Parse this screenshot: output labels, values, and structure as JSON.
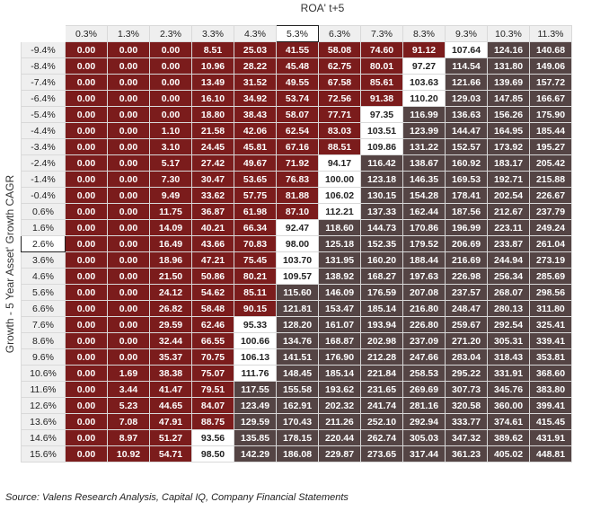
{
  "chart_data": {
    "type": "table",
    "xlabel": "ROA' t+5",
    "ylabel": "Growth - 5 Year Asset' Growth CAGR",
    "highlight_column": "5.3%",
    "highlight_row": "2.6%",
    "colors": {
      "below_threshold": "#7b1c1c",
      "threshold": "#ffffff",
      "above_threshold": "#544444"
    },
    "columns": [
      "0.3%",
      "1.3%",
      "2.3%",
      "3.3%",
      "4.3%",
      "5.3%",
      "6.3%",
      "7.3%",
      "8.3%",
      "9.3%",
      "10.3%",
      "11.3%"
    ],
    "rows": [
      "-9.4%",
      "-8.4%",
      "-7.4%",
      "-6.4%",
      "-5.4%",
      "-4.4%",
      "-3.4%",
      "-2.4%",
      "-1.4%",
      "-0.4%",
      "0.6%",
      "1.6%",
      "2.6%",
      "3.6%",
      "4.6%",
      "5.6%",
      "6.6%",
      "7.6%",
      "8.6%",
      "9.6%",
      "10.6%",
      "11.6%",
      "12.6%",
      "13.6%",
      "14.6%",
      "15.6%"
    ],
    "values": [
      [
        "0.00",
        "0.00",
        "0.00",
        "8.51",
        "25.03",
        "41.55",
        "58.08",
        "74.60",
        "91.12",
        "107.64",
        "124.16",
        "140.68"
      ],
      [
        "0.00",
        "0.00",
        "0.00",
        "10.96",
        "28.22",
        "45.48",
        "62.75",
        "80.01",
        "97.27",
        "114.54",
        "131.80",
        "149.06"
      ],
      [
        "0.00",
        "0.00",
        "0.00",
        "13.49",
        "31.52",
        "49.55",
        "67.58",
        "85.61",
        "103.63",
        "121.66",
        "139.69",
        "157.72"
      ],
      [
        "0.00",
        "0.00",
        "0.00",
        "16.10",
        "34.92",
        "53.74",
        "72.56",
        "91.38",
        "110.20",
        "129.03",
        "147.85",
        "166.67"
      ],
      [
        "0.00",
        "0.00",
        "0.00",
        "18.80",
        "38.43",
        "58.07",
        "77.71",
        "97.35",
        "116.99",
        "136.63",
        "156.26",
        "175.90"
      ],
      [
        "0.00",
        "0.00",
        "1.10",
        "21.58",
        "42.06",
        "62.54",
        "83.03",
        "103.51",
        "123.99",
        "144.47",
        "164.95",
        "185.44"
      ],
      [
        "0.00",
        "0.00",
        "3.10",
        "24.45",
        "45.81",
        "67.16",
        "88.51",
        "109.86",
        "131.22",
        "152.57",
        "173.92",
        "195.27"
      ],
      [
        "0.00",
        "0.00",
        "5.17",
        "27.42",
        "49.67",
        "71.92",
        "94.17",
        "116.42",
        "138.67",
        "160.92",
        "183.17",
        "205.42"
      ],
      [
        "0.00",
        "0.00",
        "7.30",
        "30.47",
        "53.65",
        "76.83",
        "100.00",
        "123.18",
        "146.35",
        "169.53",
        "192.71",
        "215.88"
      ],
      [
        "0.00",
        "0.00",
        "9.49",
        "33.62",
        "57.75",
        "81.88",
        "106.02",
        "130.15",
        "154.28",
        "178.41",
        "202.54",
        "226.67"
      ],
      [
        "0.00",
        "0.00",
        "11.75",
        "36.87",
        "61.98",
        "87.10",
        "112.21",
        "137.33",
        "162.44",
        "187.56",
        "212.67",
        "237.79"
      ],
      [
        "0.00",
        "0.00",
        "14.09",
        "40.21",
        "66.34",
        "92.47",
        "118.60",
        "144.73",
        "170.86",
        "196.99",
        "223.11",
        "249.24"
      ],
      [
        "0.00",
        "0.00",
        "16.49",
        "43.66",
        "70.83",
        "98.00",
        "125.18",
        "152.35",
        "179.52",
        "206.69",
        "233.87",
        "261.04"
      ],
      [
        "0.00",
        "0.00",
        "18.96",
        "47.21",
        "75.45",
        "103.70",
        "131.95",
        "160.20",
        "188.44",
        "216.69",
        "244.94",
        "273.19"
      ],
      [
        "0.00",
        "0.00",
        "21.50",
        "50.86",
        "80.21",
        "109.57",
        "138.92",
        "168.27",
        "197.63",
        "226.98",
        "256.34",
        "285.69"
      ],
      [
        "0.00",
        "0.00",
        "24.12",
        "54.62",
        "85.11",
        "115.60",
        "146.09",
        "176.59",
        "207.08",
        "237.57",
        "268.07",
        "298.56"
      ],
      [
        "0.00",
        "0.00",
        "26.82",
        "58.48",
        "90.15",
        "121.81",
        "153.47",
        "185.14",
        "216.80",
        "248.47",
        "280.13",
        "311.80"
      ],
      [
        "0.00",
        "0.00",
        "29.59",
        "62.46",
        "95.33",
        "128.20",
        "161.07",
        "193.94",
        "226.80",
        "259.67",
        "292.54",
        "325.41"
      ],
      [
        "0.00",
        "0.00",
        "32.44",
        "66.55",
        "100.66",
        "134.76",
        "168.87",
        "202.98",
        "237.09",
        "271.20",
        "305.31",
        "339.41"
      ],
      [
        "0.00",
        "0.00",
        "35.37",
        "70.75",
        "106.13",
        "141.51",
        "176.90",
        "212.28",
        "247.66",
        "283.04",
        "318.43",
        "353.81"
      ],
      [
        "0.00",
        "1.69",
        "38.38",
        "75.07",
        "111.76",
        "148.45",
        "185.14",
        "221.84",
        "258.53",
        "295.22",
        "331.91",
        "368.60"
      ],
      [
        "0.00",
        "3.44",
        "41.47",
        "79.51",
        "117.55",
        "155.58",
        "193.62",
        "231.65",
        "269.69",
        "307.73",
        "345.76",
        "383.80"
      ],
      [
        "0.00",
        "5.23",
        "44.65",
        "84.07",
        "123.49",
        "162.91",
        "202.32",
        "241.74",
        "281.16",
        "320.58",
        "360.00",
        "399.41"
      ],
      [
        "0.00",
        "7.08",
        "47.91",
        "88.75",
        "129.59",
        "170.43",
        "211.26",
        "252.10",
        "292.94",
        "333.77",
        "374.61",
        "415.45"
      ],
      [
        "0.00",
        "8.97",
        "51.27",
        "93.56",
        "135.85",
        "178.15",
        "220.44",
        "262.74",
        "305.03",
        "347.32",
        "389.62",
        "431.91"
      ],
      [
        "0.00",
        "10.92",
        "54.71",
        "98.50",
        "142.29",
        "186.08",
        "229.87",
        "273.65",
        "317.44",
        "361.23",
        "405.02",
        "448.81"
      ]
    ],
    "thresholds": {
      "low": 92,
      "high": 112.5
    }
  },
  "source": "Source: Valens Research Analysis, Capital IQ, Company Financial Statements"
}
